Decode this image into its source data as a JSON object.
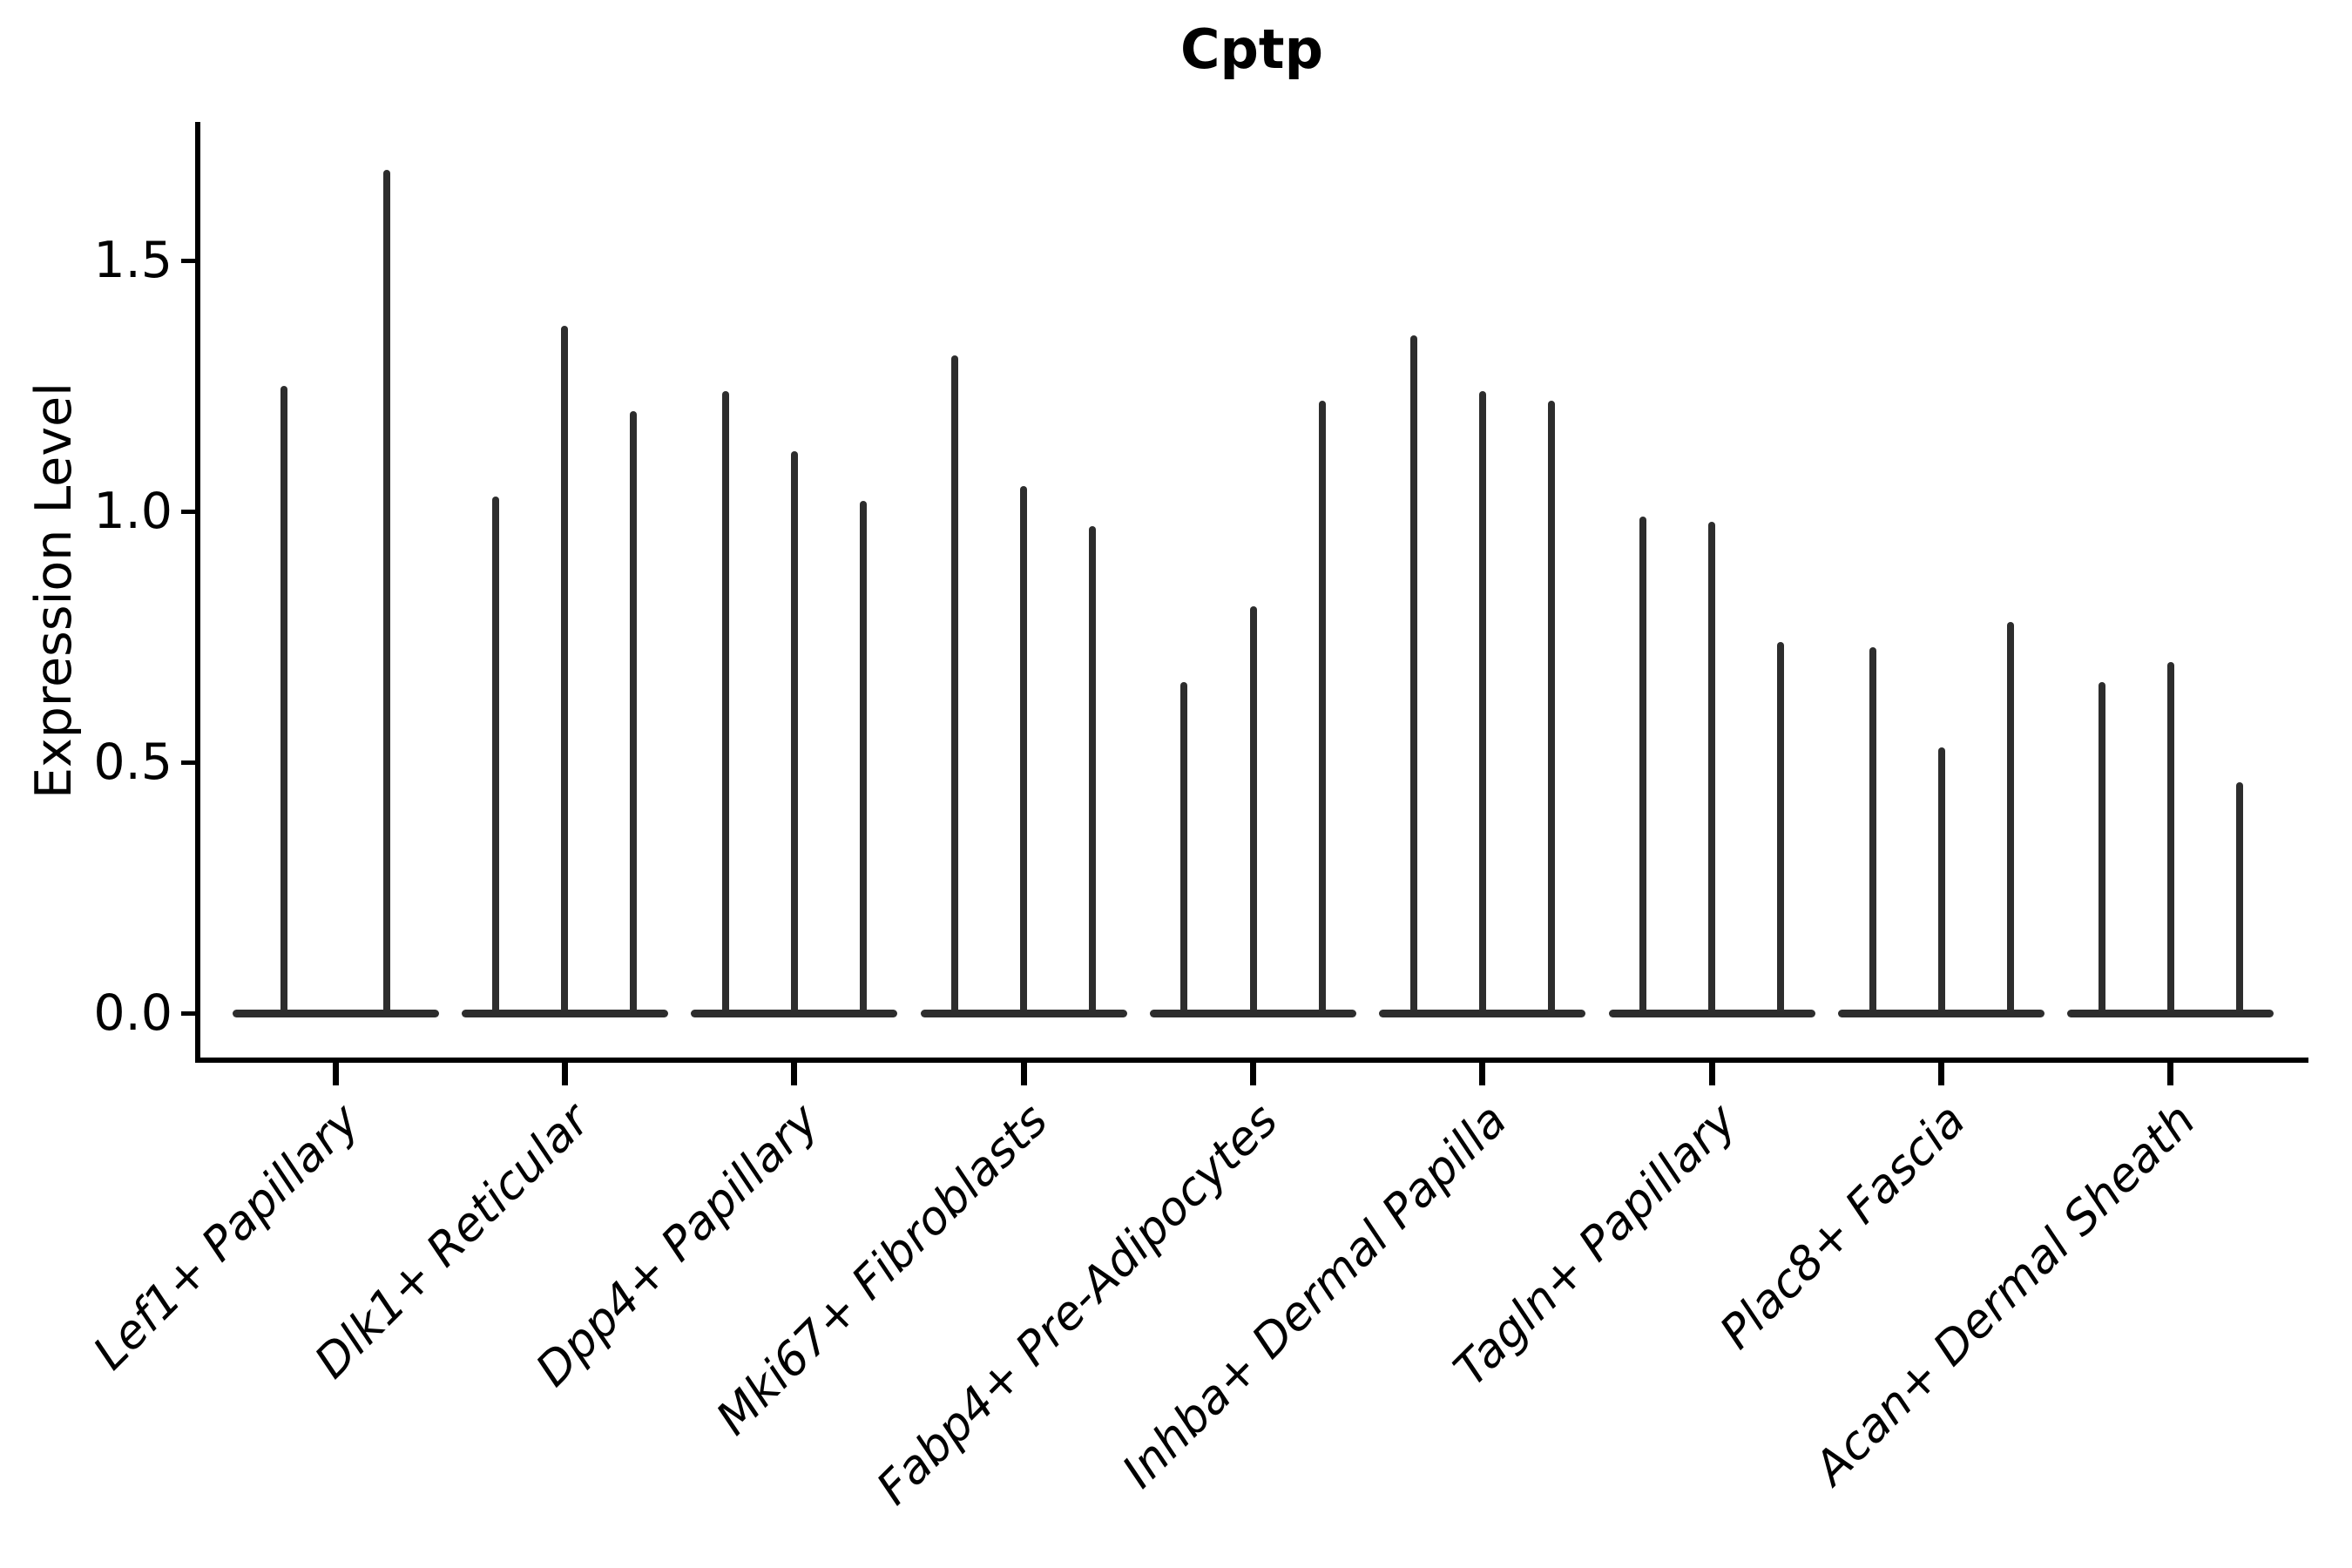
{
  "title": "Cptp",
  "colors": {
    "violin": "#2d2d2d",
    "axis": "#000000",
    "text": "#000000",
    "background": "#ffffff"
  },
  "chart_data": {
    "type": "violin",
    "title": "Cptp",
    "xlabel": "",
    "ylabel": "Expression Level",
    "ylim": [
      0,
      1.78
    ],
    "yticks": [
      0,
      0.5,
      1.0,
      1.5
    ],
    "ytick_labels": [
      "0.0",
      "0.5",
      "1.0",
      "1.5"
    ],
    "grid": false,
    "legend_position": "none",
    "x_tick_rotation": 45,
    "x_tick_style": "italic",
    "violin_shape": "narrow spike rising from flat base at expression 0 (bottom-heavy density)",
    "categories": [
      "Lef1+ Papillary",
      "Dlk1+ Reticular",
      "Dpp4+ Papillary",
      "Mki67+ Fibroblasts",
      "Fabp4+ Pre-Adipocytes",
      "Inhba+ Dermal Papilla",
      "Tagln+ Papillary",
      "Plac8+ Fascia",
      "Acan+ Dermal Sheath"
    ],
    "groups": [
      {
        "category": "Lef1+ Papillary",
        "violin_maxima": [
          1.25,
          1.68
        ]
      },
      {
        "category": "Dlk1+ Reticular",
        "violin_maxima": [
          1.03,
          1.37,
          1.2
        ]
      },
      {
        "category": "Dpp4+ Papillary",
        "violin_maxima": [
          1.24,
          1.12,
          1.02
        ]
      },
      {
        "category": "Mki67+ Fibroblasts",
        "violin_maxima": [
          1.31,
          1.05,
          0.97
        ]
      },
      {
        "category": "Fabp4+ Pre-Adipocytes",
        "violin_maxima": [
          0.66,
          0.81,
          1.22
        ]
      },
      {
        "category": "Inhba+ Dermal Papilla",
        "violin_maxima": [
          1.35,
          1.24,
          1.22
        ]
      },
      {
        "category": "Tagln+ Papillary",
        "violin_maxima": [
          0.99,
          0.98,
          0.74
        ]
      },
      {
        "category": "Plac8+ Fascia",
        "violin_maxima": [
          0.73,
          0.53,
          0.78
        ]
      },
      {
        "category": "Acan+ Dermal Sheath",
        "violin_maxima": [
          0.66,
          0.7,
          0.46
        ]
      }
    ],
    "violin_minimum": 0.0
  }
}
